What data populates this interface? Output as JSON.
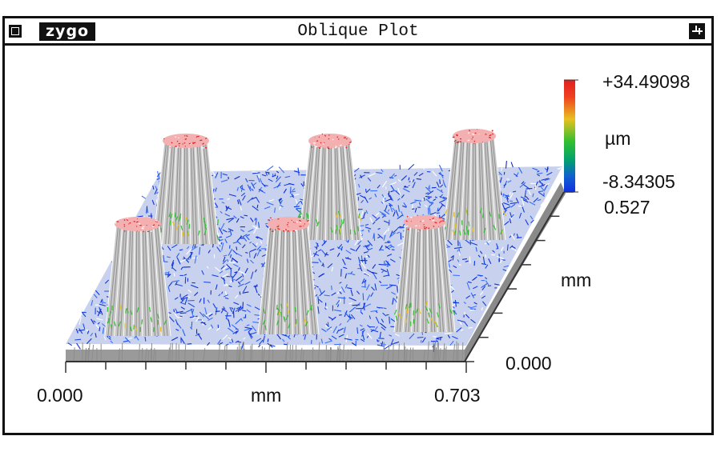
{
  "window": {
    "title": "Oblique Plot",
    "logo_text": "zygo",
    "close_icon": "close-box-icon",
    "pin_icon": "pin-icon"
  },
  "plot": {
    "colorbar": {
      "max_label": "+34.49098",
      "unit_label": "µm",
      "min_label": "-8.34305",
      "colors": [
        "#e02020",
        "#f07020",
        "#e8d020",
        "#30c030",
        "#00a070",
        "#1040e0"
      ]
    },
    "y_axis": {
      "max_label": "0.527",
      "unit_label": "mm",
      "min_label": "0.000"
    },
    "x_axis": {
      "min_label": "0.000",
      "unit_label": "mm",
      "max_label": "0.703"
    }
  }
}
